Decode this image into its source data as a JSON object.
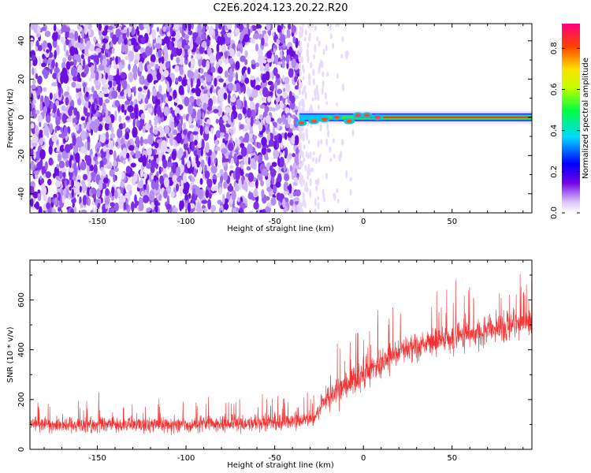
{
  "title": "C2E6.2024.123.20.22.R20",
  "chart_data": [
    {
      "type": "heatmap",
      "xlabel": "Height of straight line (km)",
      "ylabel": "Frequency (Hz)",
      "xlim": [
        -188,
        95
      ],
      "ylim": [
        -50,
        49
      ],
      "xticks": [
        -150,
        -100,
        -50,
        0,
        50
      ],
      "yticks": [
        -40,
        -20,
        0,
        20,
        40
      ],
      "colorbar": {
        "label": "Normalized spectral amplitude",
        "range": [
          0,
          0.92
        ],
        "ticks": [
          0.0,
          0.2,
          0.4,
          0.6,
          0.8
        ],
        "colormap": "rainbow"
      },
      "description_values": {
        "noise_region_x": [
          -188,
          -36
        ],
        "signal_region_x": [
          -36,
          95
        ],
        "signal_center_frequency_hz": 0
      }
    },
    {
      "type": "line",
      "xlabel": "Height of straight line (km)",
      "ylabel": "SNR (10 * v/v)",
      "xlim": [
        -188,
        95
      ],
      "ylim": [
        0,
        760
      ],
      "xticks": [
        -150,
        -100,
        -50,
        0,
        50
      ],
      "yticks": [
        0,
        200,
        400,
        600
      ],
      "series_color": "#f03232",
      "envelope_points": [
        {
          "x": -188,
          "mean": 100,
          "spread": 60
        },
        {
          "x": -100,
          "mean": 100,
          "spread": 60
        },
        {
          "x": -40,
          "mean": 110,
          "spread": 60
        },
        {
          "x": -28,
          "mean": 120,
          "spread": 60
        },
        {
          "x": -22,
          "mean": 200,
          "spread": 90
        },
        {
          "x": -10,
          "mean": 260,
          "spread": 110
        },
        {
          "x": 0,
          "mean": 300,
          "spread": 120
        },
        {
          "x": 10,
          "mean": 350,
          "spread": 120
        },
        {
          "x": 20,
          "mean": 400,
          "spread": 110
        },
        {
          "x": 50,
          "mean": 450,
          "spread": 110
        },
        {
          "x": 95,
          "mean": 510,
          "spread": 110
        }
      ]
    }
  ]
}
